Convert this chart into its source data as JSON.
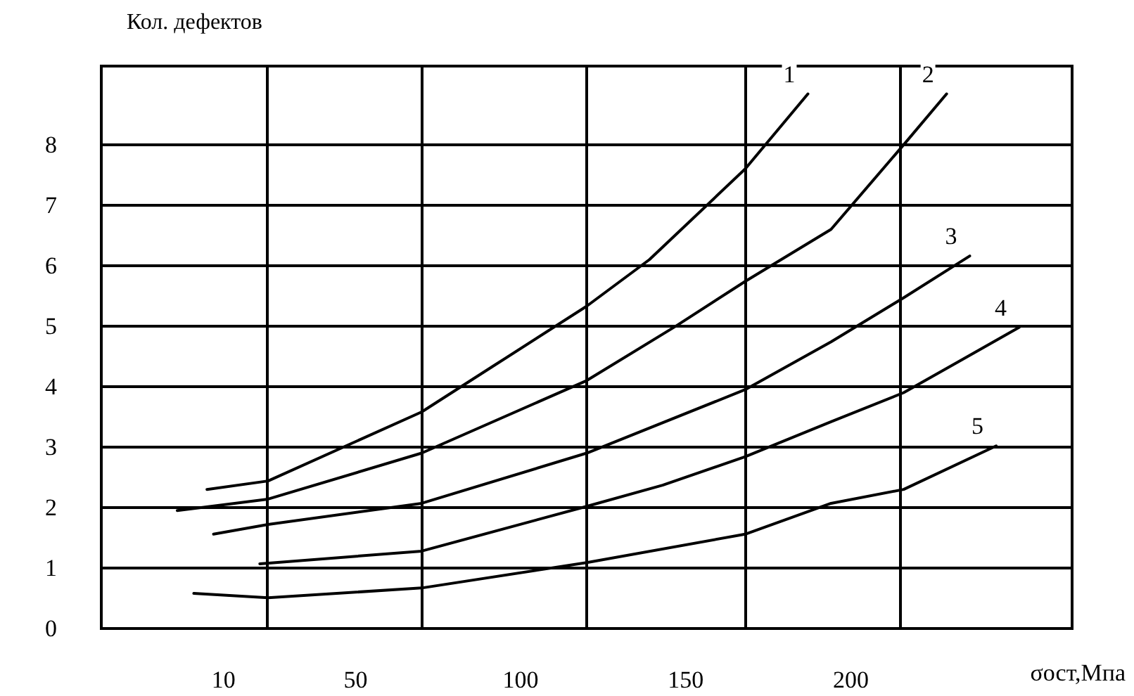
{
  "chart_data": {
    "type": "line",
    "ylabel": "Кол. дефектов",
    "xlabel": "σост,Мпа",
    "xlim": [
      -27,
      267
    ],
    "ylim": [
      0,
      9.3
    ],
    "xticks": [
      {
        "value": 10,
        "label": "10"
      },
      {
        "value": 23,
        "label": null
      },
      {
        "value": 50,
        "label": "50"
      },
      {
        "value": 70,
        "label": null
      },
      {
        "value": 100,
        "label": "100"
      },
      {
        "value": 120,
        "label": null
      },
      {
        "value": 150,
        "label": "150"
      },
      {
        "value": 168,
        "label": null
      },
      {
        "value": 200,
        "label": "200"
      },
      {
        "value": 215,
        "label": null
      }
    ],
    "yticks": [
      0,
      1,
      2,
      3,
      4,
      5,
      6,
      7,
      8
    ],
    "grid": true,
    "legend": false,
    "marker": "none",
    "line_style": "solid",
    "series": [
      {
        "name": "1",
        "color": "#000000",
        "x": [
          5,
          23.5,
          70,
          92,
          120,
          139,
          168,
          187
        ],
        "values": [
          2.3,
          2.44,
          3.58,
          4.35,
          5.33,
          6.1,
          7.6,
          8.84
        ]
      },
      {
        "name": "2",
        "color": "#000000",
        "x": [
          -4,
          23.5,
          70,
          120,
          147,
          168,
          194,
          216,
          229
        ],
        "values": [
          1.95,
          2.14,
          2.9,
          4.1,
          5.0,
          5.74,
          6.6,
          8.0,
          8.84
        ]
      },
      {
        "name": "3",
        "color": "#000000",
        "x": [
          7,
          23.5,
          70,
          120,
          168,
          194,
          216,
          236
        ],
        "values": [
          1.56,
          1.72,
          2.07,
          2.9,
          3.95,
          4.74,
          5.47,
          6.16
        ]
      },
      {
        "name": "4",
        "color": "#000000",
        "x": [
          21,
          70,
          120,
          143,
          168,
          194,
          216,
          251
        ],
        "values": [
          1.07,
          1.28,
          2.02,
          2.37,
          2.84,
          3.42,
          3.9,
          4.98
        ]
      },
      {
        "name": "5",
        "color": "#000000",
        "x": [
          1,
          23.5,
          70,
          120,
          168,
          194,
          216,
          244
        ],
        "values": [
          0.58,
          0.51,
          0.67,
          1.09,
          1.56,
          2.07,
          2.3,
          3.02
        ]
      }
    ]
  }
}
